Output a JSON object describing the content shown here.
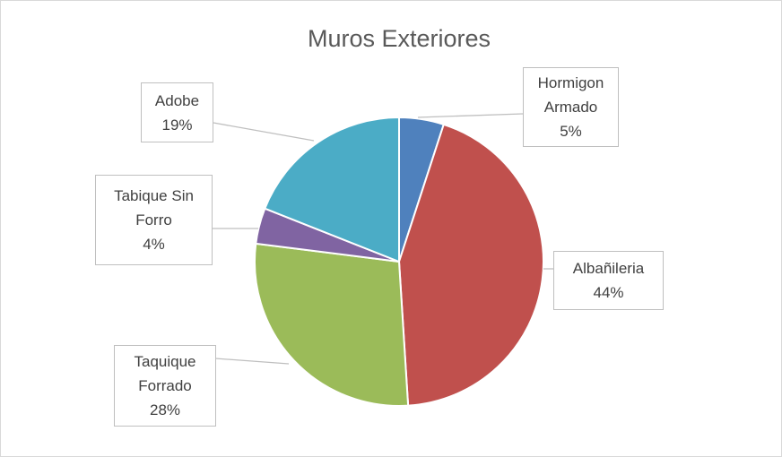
{
  "chart_data": {
    "type": "pie",
    "title": "Muros Exteriores",
    "categories": [
      "Hormigon Armado",
      "Albañileria",
      "Taquique Forrado",
      "Tabique Sin Forro",
      "Adobe"
    ],
    "values": [
      5,
      44,
      28,
      4,
      19
    ],
    "value_labels": [
      "5%",
      "44%",
      "28%",
      "4%",
      "19%"
    ],
    "colors": [
      "#4f81bd",
      "#c0504d",
      "#9bbb59",
      "#8064a2",
      "#4bacc6"
    ]
  }
}
